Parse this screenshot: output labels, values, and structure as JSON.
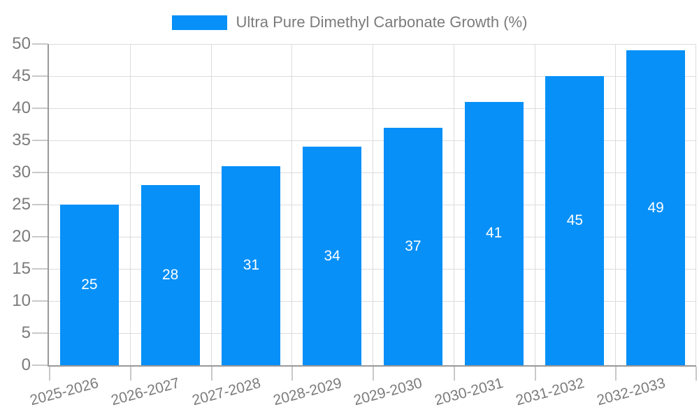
{
  "legend": {
    "label": "Ultra Pure Dimethyl Carbonate Growth (%)",
    "position": "top"
  },
  "chart_data": {
    "type": "bar",
    "title": "Ultra Pure Dimethyl Carbonate Growth (%)",
    "series_name": "Ultra Pure Dimethyl Carbonate Growth (%)",
    "categories": [
      "2025-2026",
      "2026-2027",
      "2027-2028",
      "2028-2029",
      "2029-2030",
      "2030-2031",
      "2031-2032",
      "2032-2033"
    ],
    "values": [
      25,
      28,
      31,
      34,
      37,
      41,
      45,
      49
    ],
    "xlabel": "",
    "ylabel": "",
    "ylim": [
      0,
      50
    ],
    "ytick_step": 5,
    "ytick_labels": [
      "0",
      "5",
      "10",
      "15",
      "20",
      "25",
      "30",
      "35",
      "40",
      "45",
      "50"
    ],
    "grid": true,
    "legend_position": "top",
    "x_tick_rotation_deg": -15
  },
  "colors": {
    "bar": "#0690F8",
    "grid": "#dcdcdc",
    "axis": "#999999",
    "tick": "#c9c9c9",
    "text": "#7b7b7b",
    "bg": "#ffffff",
    "barLabel": "#ffffff"
  }
}
